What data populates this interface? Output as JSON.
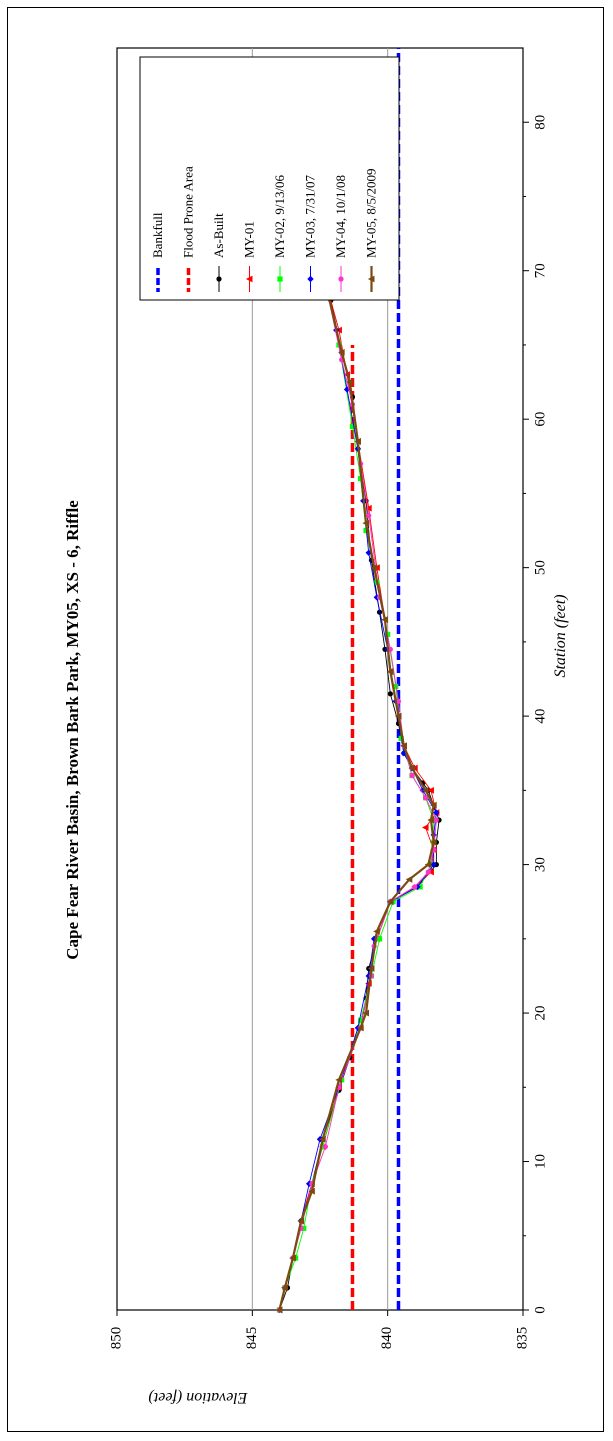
{
  "chart_data": {
    "type": "line",
    "title": "Cape Fear River Basin, Brown Bark Park, MY05, XS - 6, Riffle",
    "xlabel": "Station (feet)",
    "ylabel": "Elevation (feet)",
    "xlim": [
      0,
      85
    ],
    "ylim": [
      835,
      850
    ],
    "xticks": [
      "0",
      "10",
      "20",
      "30",
      "40",
      "50",
      "60",
      "70",
      "80"
    ],
    "yticks": [
      "835",
      "840",
      "845",
      "850"
    ],
    "grid": "horizontal",
    "legend_position": "top-right",
    "series": [
      {
        "name": "Bankfull",
        "style": "dashed",
        "color": "#0000ff",
        "x": [
          0,
          85
        ],
        "y": [
          839.6,
          839.6
        ]
      },
      {
        "name": "Flood Prone Area",
        "style": "dashed",
        "color": "#ff0000",
        "x": [
          0,
          65
        ],
        "y": [
          841.3,
          841.3
        ]
      },
      {
        "name": "As-Built",
        "marker": "circle",
        "color": "#000000",
        "x": [
          0,
          1.5,
          3.5,
          6,
          8.5,
          11.5,
          14.8,
          17,
          19,
          21,
          23,
          25,
          27.5,
          28.5,
          30,
          31.5,
          33,
          35,
          35.5,
          36.5,
          37.5,
          39.5,
          41.5,
          44.5,
          47,
          50.5,
          54.5,
          58,
          61.5,
          64.5,
          68,
          70
        ],
        "y": [
          844,
          843.7,
          843.5,
          843.2,
          842.8,
          842.4,
          841.8,
          841.4,
          841,
          840.8,
          840.7,
          840.4,
          839.9,
          838.9,
          838.2,
          838.2,
          838.1,
          838.5,
          838.7,
          839.1,
          839.4,
          839.6,
          839.9,
          840.1,
          840.3,
          840.6,
          840.8,
          841.1,
          841.3,
          841.7,
          842.1,
          842.4
        ]
      },
      {
        "name": "MY-01",
        "marker": "triangle",
        "color": "#ff0000",
        "x": [
          0,
          1.5,
          3.5,
          6,
          8.5,
          11,
          15,
          19,
          22,
          25,
          27.5,
          28.5,
          29.5,
          31,
          32.5,
          33.5,
          35,
          36.5,
          38,
          40,
          43,
          46.5,
          50,
          54,
          58.5,
          63,
          66,
          70
        ],
        "y": [
          844,
          843.8,
          843.5,
          843.2,
          842.8,
          842.4,
          841.8,
          841,
          840.7,
          840.4,
          839.9,
          839,
          838.4,
          838.3,
          838.6,
          838.2,
          838.4,
          839,
          839.4,
          839.6,
          839.9,
          840.1,
          840.4,
          840.7,
          841.1,
          841.5,
          841.8,
          842.4
        ]
      },
      {
        "name": "MY-02, 9/13/06",
        "marker": "square",
        "color": "#00ff00",
        "x": [
          0,
          1.5,
          3.5,
          5.5,
          8.5,
          11,
          15.5,
          19.5,
          22.5,
          25,
          27.5,
          28.5,
          30,
          31.5,
          33,
          34.5,
          36,
          38.5,
          42,
          45.5,
          49,
          52.5,
          56,
          59.5,
          65,
          70
        ],
        "y": [
          844,
          843.8,
          843.4,
          843.1,
          842.8,
          842.4,
          841.7,
          841,
          840.6,
          840.3,
          839.8,
          838.8,
          838.4,
          838.3,
          838.3,
          838.6,
          839.1,
          839.5,
          839.7,
          840,
          840.4,
          840.8,
          841,
          841.3,
          841.8,
          842.4
        ]
      },
      {
        "name": "MY-03, 7/31/07",
        "marker": "diamond",
        "color": "#0000ff",
        "x": [
          0,
          1.5,
          3.5,
          6,
          8.5,
          11.5,
          15,
          19,
          22.5,
          25,
          27.5,
          28.5,
          30,
          32,
          33.5,
          35,
          36.5,
          37.5,
          41,
          44.5,
          48,
          51,
          54.5,
          58,
          62,
          66,
          70
        ],
        "y": [
          844,
          843.8,
          843.5,
          843.2,
          842.9,
          842.5,
          841.8,
          841.1,
          840.7,
          840.5,
          839.9,
          838.9,
          838.3,
          838.3,
          838.2,
          838.7,
          839.1,
          839.4,
          839.7,
          840,
          840.4,
          840.7,
          840.9,
          841.1,
          841.5,
          841.9,
          842.4
        ]
      },
      {
        "name": "MY-04, 10/1/08",
        "marker": "circle",
        "color": "#ff33cc",
        "x": [
          0,
          1.5,
          3.5,
          5.5,
          8.5,
          11,
          15,
          19,
          22.5,
          24.5,
          27.5,
          28.5,
          29.5,
          31,
          33,
          34.5,
          36,
          38,
          41,
          44.5,
          48,
          53.5,
          57,
          61,
          64,
          70
        ],
        "y": [
          844,
          843.8,
          843.5,
          843.2,
          842.8,
          842.3,
          841.8,
          841,
          840.6,
          840.5,
          839.9,
          839,
          838.5,
          838.3,
          838.2,
          838.6,
          839.1,
          839.4,
          839.6,
          839.9,
          840.3,
          840.7,
          841,
          841.3,
          841.7,
          842.4
        ]
      },
      {
        "name": "MY-05, 8/5/2009",
        "marker": "triangle",
        "color": "#7a4a10",
        "x": [
          0,
          1.5,
          3.5,
          6,
          8,
          11.5,
          15.5,
          19,
          20,
          23,
          25.5,
          27.5,
          29,
          30,
          31.5,
          33,
          34,
          35,
          36.5,
          38,
          40,
          43,
          46.5,
          50,
          53,
          58.5,
          62.5,
          64.5,
          70
        ],
        "y": [
          844,
          843.8,
          843.5,
          843.2,
          842.8,
          842.4,
          841.8,
          841,
          840.8,
          840.6,
          840.4,
          839.9,
          839.2,
          838.5,
          838.3,
          838.4,
          838.3,
          838.6,
          839.1,
          839.4,
          839.6,
          839.9,
          840.1,
          840.5,
          840.8,
          841.1,
          841.4,
          841.7,
          842.4
        ]
      }
    ]
  }
}
